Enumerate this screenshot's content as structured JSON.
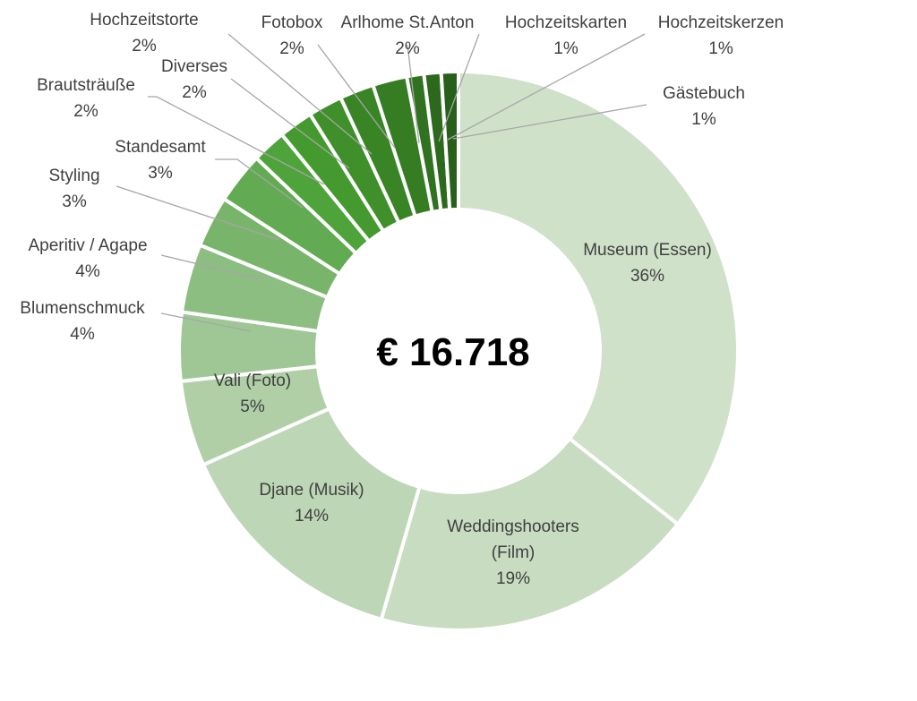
{
  "chart_data": {
    "type": "pie",
    "donut": true,
    "center_label": "€ 16.718",
    "slices": [
      {
        "label": "Museum (Essen)",
        "label_lines": [
          "Museum (Essen)"
        ],
        "value": 36,
        "value_label": "36%",
        "color": "#cfe1c9"
      },
      {
        "label": "Weddingshooters (Film)",
        "label_lines": [
          "Weddingshooters",
          "(Film)"
        ],
        "value": 19,
        "value_label": "19%",
        "color": "#c8dcc1"
      },
      {
        "label": "Djane (Musik)",
        "label_lines": [
          "Djane (Musik)"
        ],
        "value": 14,
        "value_label": "14%",
        "color": "#bdd6b5"
      },
      {
        "label": "Vali (Foto)",
        "label_lines": [
          "Vali (Foto)"
        ],
        "value": 5,
        "value_label": "5%",
        "color": "#b0cfa6"
      },
      {
        "label": "Blumenschmuck",
        "label_lines": [
          "Blumenschmuck"
        ],
        "value": 4,
        "value_label": "4%",
        "color": "#9ec795"
      },
      {
        "label": "Aperitiv / Agape",
        "label_lines": [
          "Aperitiv / Agape"
        ],
        "value": 4,
        "value_label": "4%",
        "color": "#8cbd81"
      },
      {
        "label": "Styling",
        "label_lines": [
          "Styling"
        ],
        "value": 3,
        "value_label": "3%",
        "color": "#78b46a"
      },
      {
        "label": "Standesamt",
        "label_lines": [
          "Standesamt"
        ],
        "value": 3,
        "value_label": "3%",
        "color": "#62ab52"
      },
      {
        "label": "Brautsträuße",
        "label_lines": [
          "Brautsträuße"
        ],
        "value": 2,
        "value_label": "2%",
        "color": "#4ea33a"
      },
      {
        "label": "Diverses",
        "label_lines": [
          "Diverses"
        ],
        "value": 2,
        "value_label": "2%",
        "color": "#459a2f"
      },
      {
        "label": "Hochzeitstorte",
        "label_lines": [
          "Hochzeitstorte"
        ],
        "value": 2,
        "value_label": "2%",
        "color": "#3f8f2a"
      },
      {
        "label": "Fotobox",
        "label_lines": [
          "Fotobox"
        ],
        "value": 2,
        "value_label": "2%",
        "color": "#398526"
      },
      {
        "label": "Arlhome St.Anton",
        "label_lines": [
          "Arlhome St.Anton"
        ],
        "value": 2,
        "value_label": "2%",
        "color": "#357c23"
      },
      {
        "label": "Hochzeitskarten",
        "label_lines": [
          "Hochzeitskarten"
        ],
        "value": 1,
        "value_label": "1%",
        "color": "#307220"
      },
      {
        "label": "Hochzeitskerzen",
        "label_lines": [
          "Hochzeitskerzen"
        ],
        "value": 1,
        "value_label": "1%",
        "color": "#2c691d"
      },
      {
        "label": "Gästebuch",
        "label_lines": [
          "Gästebuch"
        ],
        "value": 1,
        "value_label": "1%",
        "color": "#28601b"
      }
    ]
  }
}
